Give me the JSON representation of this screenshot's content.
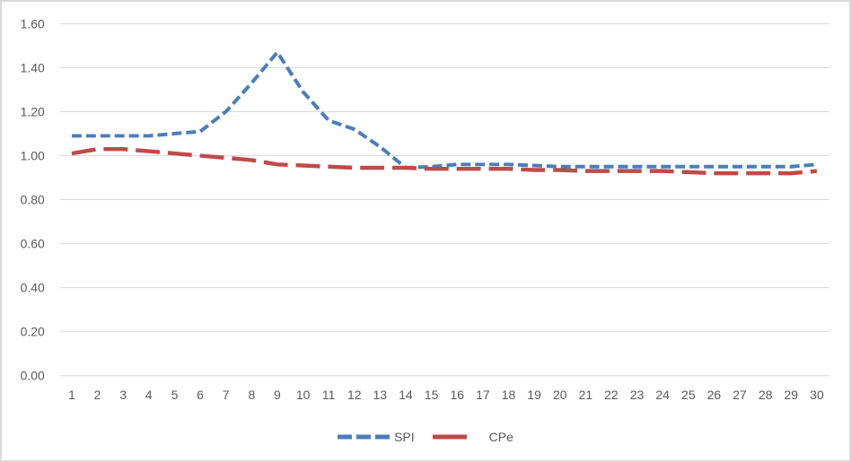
{
  "chart_data": {
    "type": "line",
    "title": "",
    "xlabel": "",
    "ylabel": "",
    "categories": [
      "1",
      "2",
      "3",
      "4",
      "5",
      "6",
      "7",
      "8",
      "9",
      "10",
      "11",
      "12",
      "13",
      "14",
      "15",
      "16",
      "17",
      "18",
      "19",
      "20",
      "21",
      "22",
      "23",
      "24",
      "25",
      "26",
      "27",
      "28",
      "29",
      "30"
    ],
    "series": [
      {
        "name": "SPI",
        "color": "#4A7EBB",
        "dash_style": "dash",
        "values": [
          1.09,
          1.09,
          1.09,
          1.09,
          1.1,
          1.11,
          1.2,
          1.33,
          1.47,
          1.29,
          1.16,
          1.12,
          1.04,
          0.945,
          0.95,
          0.96,
          0.96,
          0.96,
          0.955,
          0.95,
          0.95,
          0.95,
          0.95,
          0.95,
          0.95,
          0.95,
          0.95,
          0.95,
          0.95,
          0.96
        ]
      },
      {
        "name": "CPe",
        "color": "#BE4B48",
        "dash_style": "long-dash",
        "values": [
          1.01,
          1.03,
          1.03,
          1.02,
          1.01,
          1.0,
          0.99,
          0.98,
          0.96,
          0.955,
          0.95,
          0.945,
          0.945,
          0.945,
          0.94,
          0.94,
          0.94,
          0.94,
          0.935,
          0.935,
          0.93,
          0.93,
          0.93,
          0.93,
          0.925,
          0.92,
          0.92,
          0.92,
          0.92,
          0.93
        ]
      }
    ],
    "ylim": [
      0,
      1.6
    ],
    "ytick_step": 0.2,
    "ytick_labels": [
      "0.00",
      "0.20",
      "0.40",
      "0.60",
      "0.80",
      "1.00",
      "1.20",
      "1.40",
      "1.60"
    ],
    "grid": "horizontal",
    "legend_position": "bottom",
    "colors": {
      "gridline": "#D9D9D9",
      "axis_text": "#595959",
      "frame_border": "#D9D9D9",
      "background": "#FFFFFF"
    }
  }
}
